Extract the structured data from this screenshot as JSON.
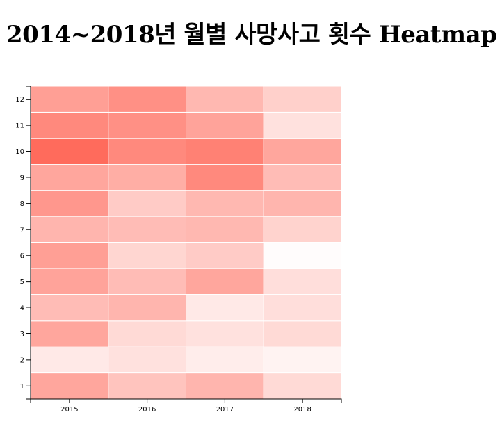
{
  "chart_data": {
    "type": "heatmap",
    "title": "2014~2018년 월별 사망사고 횟수 Heatmap",
    "xlabel": "",
    "ylabel": "",
    "x_categories": [
      "2015",
      "2016",
      "2017",
      "2018"
    ],
    "y_categories": [
      "1",
      "2",
      "3",
      "4",
      "5",
      "6",
      "7",
      "8",
      "9",
      "10",
      "11",
      "12"
    ],
    "values": [
      [
        0.6,
        0.4,
        0.5,
        0.25
      ],
      [
        0.15,
        0.2,
        0.12,
        0.08
      ],
      [
        0.6,
        0.25,
        0.2,
        0.25
      ],
      [
        0.45,
        0.5,
        0.15,
        0.22
      ],
      [
        0.62,
        0.45,
        0.6,
        0.22
      ],
      [
        0.65,
        0.28,
        0.35,
        0.02
      ],
      [
        0.5,
        0.45,
        0.48,
        0.3
      ],
      [
        0.7,
        0.35,
        0.48,
        0.5
      ],
      [
        0.6,
        0.55,
        0.8,
        0.45
      ],
      [
        1.0,
        0.8,
        0.85,
        0.6
      ],
      [
        0.8,
        0.75,
        0.62,
        0.2
      ],
      [
        0.65,
        0.75,
        0.48,
        0.32
      ]
    ],
    "color_low": "#ffffff",
    "color_high": "#ff6b5c",
    "grid": false,
    "legend": "none"
  }
}
